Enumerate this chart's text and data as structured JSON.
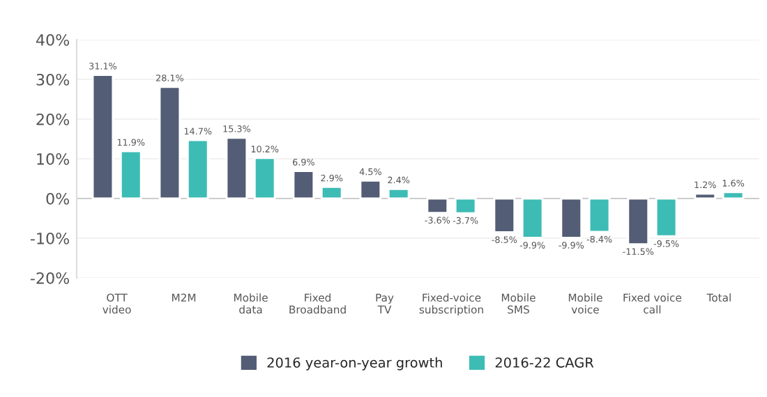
{
  "chart_data": {
    "type": "bar",
    "categories": [
      "OTT\nvideo",
      "M2M",
      "Mobile\ndata",
      "Fixed\nBroadband",
      "Pay\nTV",
      "Fixed-voice\nsubscription",
      "Mobile\nSMS",
      "Mobile\nvoice",
      "Fixed voice\ncall",
      "Total"
    ],
    "series": [
      {
        "name": "2016 year-on-year growth",
        "color": "#535d75",
        "values": [
          31.1,
          28.1,
          15.3,
          6.9,
          4.5,
          -3.6,
          -8.5,
          -9.9,
          -11.5,
          1.2
        ],
        "value_labels": [
          "31.1%",
          "28.1%",
          "15.3%",
          "6.9%",
          "4.5%",
          "-3.6%",
          "-8.5%",
          "-9.9%",
          "-11.5%",
          "1.2%"
        ]
      },
      {
        "name": "2016-22 CAGR",
        "color": "#3dbcb5",
        "values": [
          11.9,
          14.7,
          10.2,
          2.9,
          2.4,
          -3.7,
          -9.9,
          -8.4,
          -9.5,
          1.6
        ],
        "value_labels": [
          "11.9%",
          "14.7%",
          "10.2%",
          "2.9%",
          "2.4%",
          "-3.7%",
          "-9.9%",
          "-8.4%",
          "-9.5%",
          "1.6%"
        ]
      }
    ],
    "ylim": [
      -20,
      40
    ],
    "yticks": [
      {
        "value": -20,
        "label": "-20%"
      },
      {
        "value": -10,
        "label": "-10%"
      },
      {
        "value": 0,
        "label": "0%"
      },
      {
        "value": 10,
        "label": "10%"
      },
      {
        "value": 20,
        "label": "20%"
      },
      {
        "value": 30,
        "label": "30%"
      },
      {
        "value": 40,
        "label": "40%"
      }
    ],
    "grid": "y",
    "legend": "bottom"
  }
}
